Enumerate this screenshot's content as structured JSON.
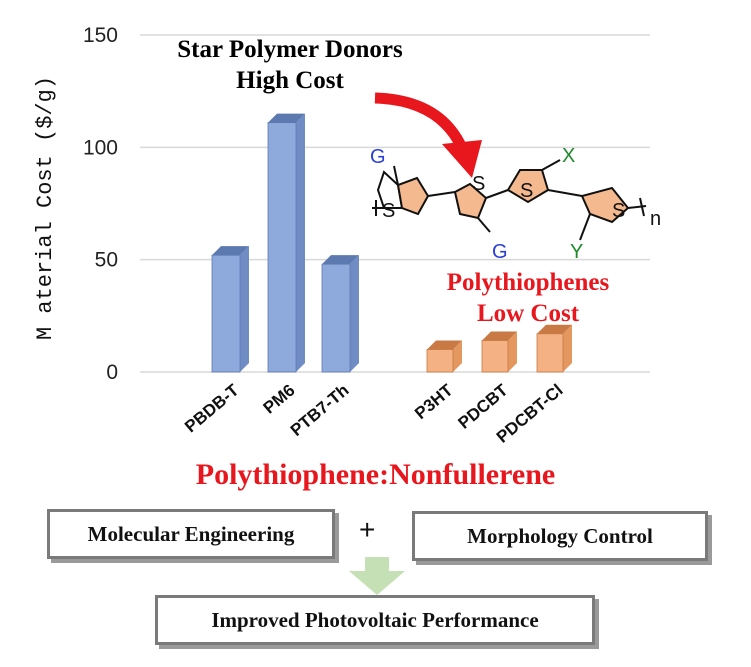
{
  "chart_data": {
    "type": "bar",
    "ylabel": "M aterial Cost ($/g)",
    "ylim": [
      0,
      150
    ],
    "yticks": [
      0,
      50,
      100,
      150
    ],
    "grid": true,
    "categories": [
      "PBDB-T",
      "PM6",
      "PTB7-Th",
      "P3HT",
      "PDCBT",
      "PDCBT-Cl"
    ],
    "series": [
      {
        "values": [
          52,
          111,
          48,
          null,
          null,
          null
        ],
        "color": "#8ea9db"
      },
      {
        "values": [
          null,
          null,
          null,
          10,
          14,
          17
        ],
        "color": "#f4b183"
      }
    ],
    "annotations": {
      "star_line1": "Star Polymer Donors",
      "star_line2": "High Cost",
      "poly_line1": "Polythiophenes",
      "poly_line2": "Low Cost"
    },
    "structure_labels": {
      "g1": "G",
      "g2": "G",
      "x": "X",
      "y": "Y",
      "s": "S",
      "n": "n"
    }
  },
  "colors": {
    "accent_red": "#e8161d",
    "bar_blue": "#8ea9db",
    "bar_orange": "#f4b183",
    "arrow_green": "#c5e0b4"
  },
  "subtitle": "Polythiophene:Nonfullerene",
  "boxes": {
    "molecular": "Molecular Engineering",
    "plus": "+",
    "morphology": "Morphology Control",
    "improved": "Improved Photovoltaic Performance"
  }
}
